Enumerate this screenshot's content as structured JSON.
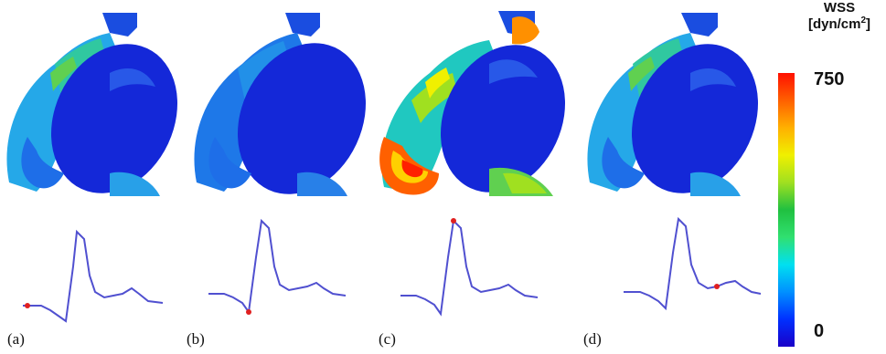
{
  "panels": [
    {
      "label": "(a)",
      "state": "low"
    },
    {
      "label": "(b)",
      "state": "low"
    },
    {
      "label": "(c)",
      "state": "high"
    },
    {
      "label": "(d)",
      "state": "low"
    }
  ],
  "colorbar": {
    "title_line1": "WSS",
    "title_line2_prefix": "[dyn/cm",
    "title_line2_sup": "2",
    "title_line2_suffix": "]",
    "max_label": "750",
    "min_label": "0",
    "colors": [
      "#1a00c8",
      "#0030ff",
      "#0090ff",
      "#00e0f0",
      "#30e070",
      "#20c040",
      "#a0e020",
      "#f0f000",
      "#ffb000",
      "#ff6000",
      "#ff1000"
    ]
  },
  "waveform_markers": [
    0.0,
    0.25,
    0.5,
    0.88
  ]
}
